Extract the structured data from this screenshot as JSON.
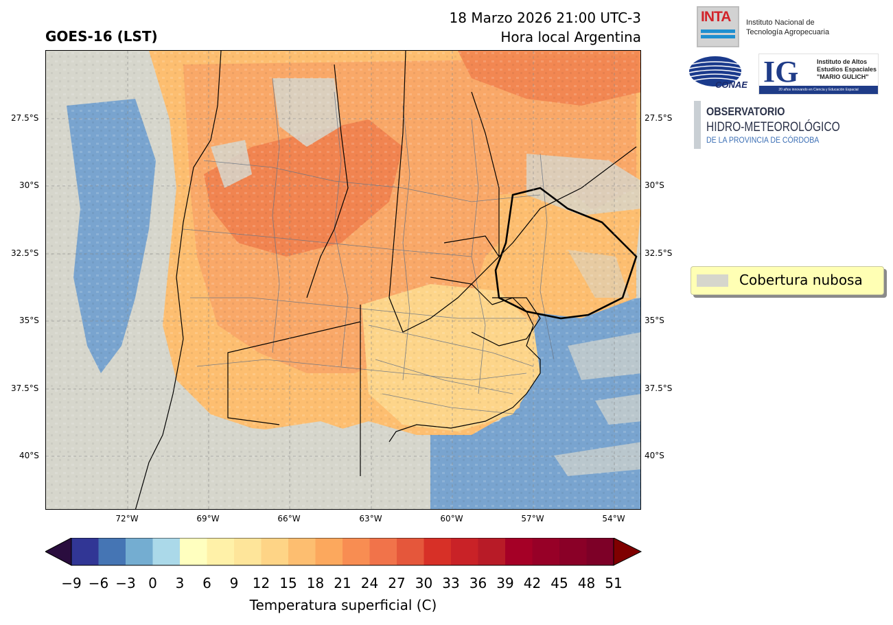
{
  "title": {
    "product": "GOES-16 (LST)",
    "datetime": "18 Marzo 2026 21:00 UTC-3",
    "local": "Hora local Argentina"
  },
  "map": {
    "lat_labels": [
      "27.5°S",
      "30°S",
      "32.5°S",
      "35°S",
      "37.5°S",
      "40°S"
    ],
    "lon_labels": [
      "72°W",
      "69°W",
      "66°W",
      "63°W",
      "60°W",
      "57°W",
      "54°W"
    ],
    "colors": {
      "cloud": "#d6d6cc",
      "ocean_cold": "#6f9fcf",
      "warm_low": "#fdd58a",
      "warm_mid": "#f9a868",
      "warm_high": "#f07e4c"
    }
  },
  "legend": {
    "label": "Cobertura nubosa",
    "swatch_color": "#d6d6cc"
  },
  "colorbar": {
    "ticks": [
      "−9",
      "−6",
      "−3",
      "0",
      "3",
      "6",
      "9",
      "12",
      "15",
      "18",
      "21",
      "24",
      "27",
      "30",
      "33",
      "36",
      "39",
      "42",
      "45",
      "48",
      "51"
    ],
    "colors": [
      "#313695",
      "#4575b4",
      "#74add1",
      "#abd9e9",
      "#ffffbf",
      "#fff1a8",
      "#fee59a",
      "#fed486",
      "#fdbe70",
      "#fca85d",
      "#f88d52",
      "#f1734a",
      "#e5573b",
      "#d73027",
      "#c92227",
      "#b81b27",
      "#a50026",
      "#970027",
      "#8a0027",
      "#7d0027"
    ],
    "under_color": "#2a0d3e",
    "over_color": "#7f0000",
    "label": "Temperatura superficial (C)"
  },
  "logos": {
    "inta": {
      "mark": "INTA",
      "line1": "Instituto Nacional de",
      "line2": "Tecnología Agropecuaria"
    },
    "conae": {
      "mark": "CONAE"
    },
    "ig": {
      "mark": "IG",
      "line1": "Instituto de Altos",
      "line2": "Estudios Espaciales",
      "line3": "\"MARIO GULICH\"",
      "band": "20 años innovando en Ciencia y Educación Espacial"
    },
    "observatorio": {
      "line1": "OBSERVATORIO",
      "line2": "HIDRO-METEOROLÓGICO",
      "line3": "DE LA PROVINCIA DE CÓRDOBA"
    }
  }
}
